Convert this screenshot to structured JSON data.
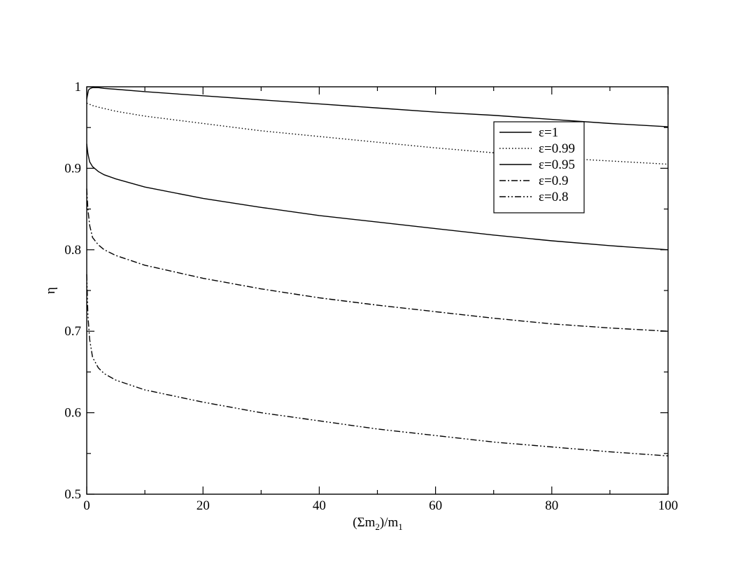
{
  "chart_data": {
    "type": "line",
    "xlabel": {
      "pre": "(Σm",
      "sub1": "2",
      "mid": ")/m",
      "sub2": "1"
    },
    "ylabel": "η",
    "xlim": [
      0,
      100
    ],
    "ylim": [
      0.5,
      1.0
    ],
    "xticks": [
      0,
      20,
      40,
      60,
      80,
      100
    ],
    "yticks": [
      0.5,
      0.6,
      0.7,
      0.8,
      0.9,
      1.0
    ],
    "xtick_labels": [
      "0",
      "20",
      "40",
      "60",
      "80",
      "100"
    ],
    "ytick_labels": [
      "0.5",
      "0.6",
      "0.7",
      "0.8",
      "0.9",
      "1"
    ],
    "grid": false,
    "legend_position": "top-right",
    "series": [
      {
        "name": "ε=1",
        "dash": "solid",
        "x": [
          0,
          0.3,
          0.6,
          1,
          1.5,
          2,
          3,
          5,
          10,
          20,
          30,
          40,
          50,
          60,
          70,
          80,
          90,
          100
        ],
        "y": [
          0.985,
          0.996,
          0.998,
          0.999,
          0.999,
          0.999,
          0.998,
          0.997,
          0.994,
          0.989,
          0.984,
          0.979,
          0.974,
          0.969,
          0.965,
          0.96,
          0.955,
          0.951
        ]
      },
      {
        "name": "ε=0.99",
        "dash": "dotted",
        "x": [
          0,
          1,
          2,
          5,
          10,
          20,
          30,
          40,
          50,
          60,
          70,
          80,
          90,
          100
        ],
        "y": [
          0.98,
          0.977,
          0.975,
          0.97,
          0.964,
          0.955,
          0.946,
          0.939,
          0.932,
          0.925,
          0.919,
          0.913,
          0.909,
          0.905
        ]
      },
      {
        "name": "ε=0.95",
        "dash": "solid",
        "x": [
          0,
          0.2,
          0.5,
          1,
          2,
          3,
          5,
          10,
          20,
          30,
          40,
          50,
          60,
          70,
          80,
          90,
          100
        ],
        "y": [
          0.93,
          0.918,
          0.908,
          0.902,
          0.896,
          0.892,
          0.887,
          0.877,
          0.863,
          0.852,
          0.842,
          0.834,
          0.826,
          0.818,
          0.811,
          0.805,
          0.8
        ]
      },
      {
        "name": "ε=0.9",
        "dash": "dashdot",
        "x": [
          0,
          0.2,
          0.5,
          1,
          2,
          3,
          5,
          10,
          20,
          30,
          40,
          50,
          60,
          70,
          80,
          90,
          100
        ],
        "y": [
          0.875,
          0.85,
          0.83,
          0.815,
          0.806,
          0.8,
          0.793,
          0.781,
          0.765,
          0.752,
          0.741,
          0.732,
          0.724,
          0.716,
          0.709,
          0.704,
          0.7
        ]
      },
      {
        "name": "ε=0.8",
        "dash": "dashdotdot",
        "x": [
          0,
          0.2,
          0.5,
          1,
          2,
          3,
          5,
          10,
          20,
          30,
          40,
          50,
          60,
          70,
          80,
          90,
          100
        ],
        "y": [
          0.77,
          0.72,
          0.69,
          0.668,
          0.655,
          0.648,
          0.64,
          0.628,
          0.613,
          0.6,
          0.59,
          0.58,
          0.572,
          0.564,
          0.558,
          0.552,
          0.547
        ]
      }
    ]
  }
}
